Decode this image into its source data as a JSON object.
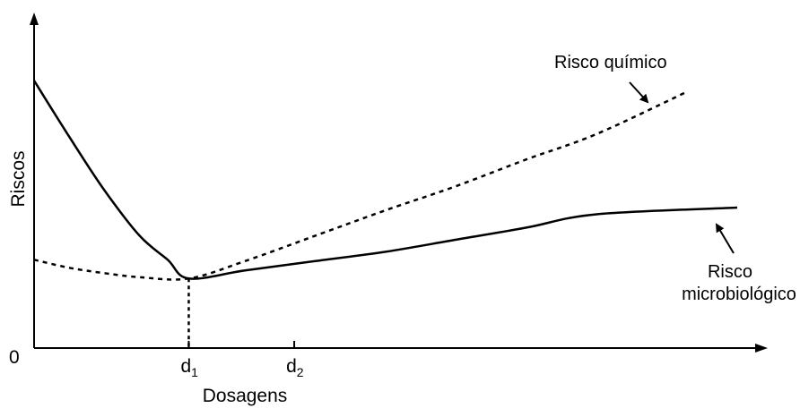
{
  "chart_data": {
    "type": "line",
    "title": "",
    "xlabel": "Dosagens",
    "ylabel": "Riscos",
    "origin_label": "0",
    "grid": false,
    "legend": "none",
    "xlim": [
      0,
      10
    ],
    "ylim": [
      0,
      10
    ],
    "x_ticks": [
      {
        "x": 2.2,
        "base": "d",
        "sub": "1"
      },
      {
        "x": 3.7,
        "base": "d",
        "sub": "2"
      }
    ],
    "series": [
      {
        "name": "Risco microbiológico",
        "style": "solid",
        "points": [
          [
            0,
            10.0
          ],
          [
            0.5,
            7.9
          ],
          [
            1.0,
            5.9
          ],
          [
            1.5,
            4.2
          ],
          [
            1.9,
            3.3
          ],
          [
            2.2,
            2.6
          ],
          [
            3.0,
            2.9
          ],
          [
            4.0,
            3.25
          ],
          [
            5.0,
            3.6
          ],
          [
            6.0,
            4.05
          ],
          [
            7.0,
            4.5
          ],
          [
            8.0,
            5.0
          ],
          [
            10.0,
            5.25
          ]
        ]
      },
      {
        "name": "Risco químico",
        "style": "dashed",
        "points": [
          [
            0,
            3.3
          ],
          [
            0.5,
            3.0
          ],
          [
            1.0,
            2.8
          ],
          [
            1.5,
            2.65
          ],
          [
            2.2,
            2.6
          ],
          [
            3.0,
            3.25
          ],
          [
            4.0,
            4.2
          ],
          [
            5.0,
            5.15
          ],
          [
            6.0,
            6.05
          ],
          [
            7.0,
            7.05
          ],
          [
            8.0,
            8.0
          ],
          [
            9.3,
            9.6
          ]
        ]
      }
    ],
    "annotations": [
      {
        "series": "Risco químico",
        "lines": [
          "Risco químico"
        ],
        "pos": "upper-right"
      },
      {
        "series": "Risco microbiológico",
        "lines": [
          "Risco",
          "microbiológico"
        ],
        "pos": "lower-right"
      }
    ],
    "guide_x": 2.2,
    "guide_y": 2.6
  }
}
